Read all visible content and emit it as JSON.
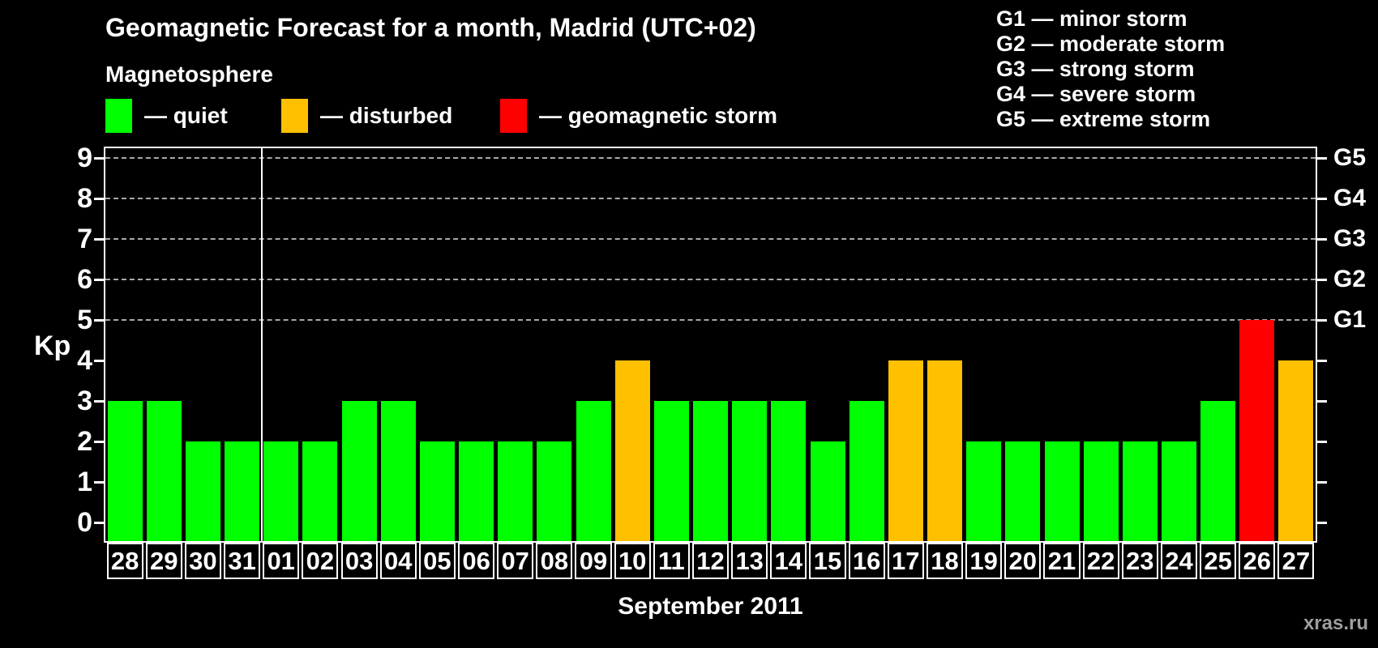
{
  "chart_data": {
    "type": "bar",
    "title": "Geomagnetic Forecast for a month, Madrid (UTC+02)",
    "subtitle": "Magnetosphere",
    "xlabel": "September 2011",
    "ylabel": "Kp",
    "ylim": [
      0,
      9
    ],
    "grid": "dashed horizontal lines at Kp 5-9 only",
    "legend_position": "top-left",
    "categories": [
      "28",
      "29",
      "30",
      "31",
      "01",
      "02",
      "03",
      "04",
      "05",
      "06",
      "07",
      "08",
      "09",
      "10",
      "11",
      "12",
      "13",
      "14",
      "15",
      "16",
      "17",
      "18",
      "19",
      "20",
      "21",
      "22",
      "23",
      "24",
      "25",
      "26",
      "27"
    ],
    "values": [
      3,
      3,
      2,
      2,
      2,
      2,
      3,
      3,
      2,
      2,
      2,
      2,
      3,
      4,
      3,
      3,
      3,
      3,
      2,
      3,
      4,
      4,
      2,
      2,
      2,
      2,
      2,
      2,
      3,
      5,
      4
    ],
    "statuses": [
      "quiet",
      "quiet",
      "quiet",
      "quiet",
      "quiet",
      "quiet",
      "quiet",
      "quiet",
      "quiet",
      "quiet",
      "quiet",
      "quiet",
      "quiet",
      "disturbed",
      "quiet",
      "quiet",
      "quiet",
      "quiet",
      "quiet",
      "quiet",
      "disturbed",
      "disturbed",
      "quiet",
      "quiet",
      "quiet",
      "quiet",
      "quiet",
      "quiet",
      "quiet",
      "storm",
      "disturbed"
    ],
    "separator_slot_index": 4,
    "separator_meaning": "month boundary between Aug 31 and Sep 01",
    "y_ticks": [
      0,
      1,
      2,
      3,
      4,
      5,
      6,
      7,
      8,
      9
    ],
    "grid_levels": [
      5,
      6,
      7,
      8,
      9
    ],
    "right_axis_labels": [
      {
        "kp": 5,
        "label": "G1"
      },
      {
        "kp": 6,
        "label": "G2"
      },
      {
        "kp": 7,
        "label": "G3"
      },
      {
        "kp": 8,
        "label": "G4"
      },
      {
        "kp": 9,
        "label": "G5"
      }
    ],
    "colors": {
      "quiet": "#00ff00",
      "disturbed": "#ffc000",
      "storm": "#ff0000",
      "background": "#000000",
      "grid": "#a8a8a8",
      "axis": "#ffffff"
    }
  },
  "legend": {
    "items": [
      {
        "status": "quiet",
        "label": "— quiet",
        "color": "#00ff00"
      },
      {
        "status": "disturbed",
        "label": "— disturbed",
        "color": "#ffc000"
      },
      {
        "status": "storm",
        "label": "— geomagnetic storm",
        "color": "#ff0000"
      }
    ]
  },
  "g_legend": {
    "lines": [
      "G1 — minor storm",
      "G2 — moderate storm",
      "G3 — strong storm",
      "G4 — severe storm",
      "G5 — extreme storm"
    ]
  },
  "watermark": "xras.ru"
}
